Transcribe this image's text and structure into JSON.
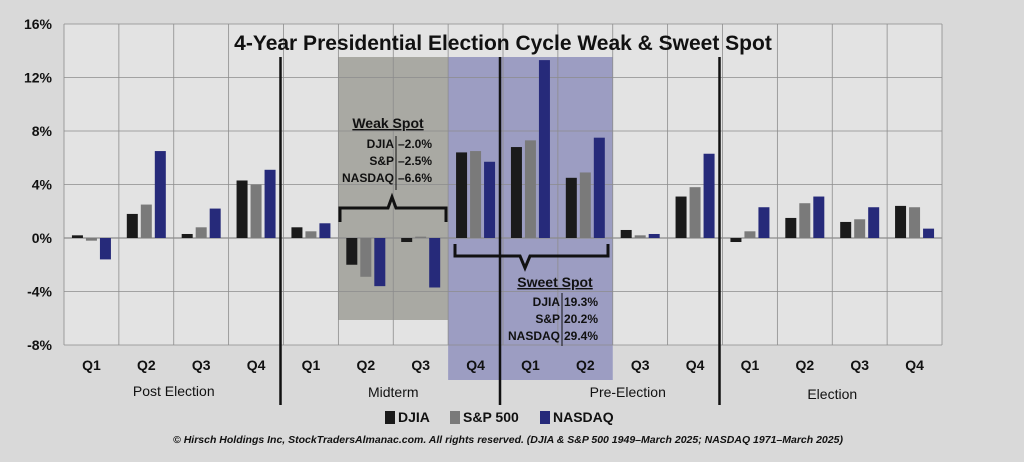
{
  "chart_data": {
    "type": "bar",
    "title": "4-Year Presidential Election Cycle Weak & Sweet Spot",
    "ylim": [
      -8,
      16
    ],
    "yticks": [
      "16%",
      "12%",
      "8%",
      "4%",
      "0%",
      "-4%",
      "-8%"
    ],
    "ytick_values": [
      16,
      12,
      8,
      4,
      0,
      -4,
      -8
    ],
    "grid": true,
    "legend_position": "bottom-center",
    "categories": [
      "Q1",
      "Q2",
      "Q3",
      "Q4",
      "Q1",
      "Q2",
      "Q3",
      "Q4",
      "Q1",
      "Q2",
      "Q3",
      "Q4",
      "Q1",
      "Q2",
      "Q3",
      "Q4"
    ],
    "groups": [
      "Post Election",
      "Midterm",
      "Pre-Election",
      "Election"
    ],
    "series": [
      {
        "name": "DJIA",
        "color": "#1a1a1a",
        "values": [
          0.2,
          1.8,
          0.3,
          4.3,
          0.8,
          -2.0,
          -0.3,
          6.4,
          6.8,
          4.5,
          0.6,
          3.1,
          -0.3,
          1.5,
          1.2,
          2.4
        ]
      },
      {
        "name": "S&P 500",
        "color": "#7a7a7a",
        "values": [
          -0.2,
          2.5,
          0.8,
          4.0,
          0.5,
          -2.9,
          0.1,
          6.5,
          7.3,
          4.9,
          0.2,
          3.8,
          0.5,
          2.6,
          1.4,
          2.3
        ]
      },
      {
        "name": "NASDAQ",
        "color": "#262a7a",
        "values": [
          -1.6,
          6.5,
          2.2,
          5.1,
          1.1,
          -3.6,
          -3.7,
          5.7,
          13.3,
          7.5,
          0.3,
          6.3,
          2.3,
          3.1,
          2.3,
          0.7
        ]
      }
    ],
    "annotations": {
      "weak_spot": {
        "title": "Weak Spot",
        "rows": [
          {
            "label": "DJIA",
            "value": "–2.0%"
          },
          {
            "label": "S&P",
            "value": "–2.5%"
          },
          {
            "label": "NASDAQ",
            "value": "–6.6%"
          }
        ]
      },
      "sweet_spot": {
        "title": "Sweet Spot",
        "rows": [
          {
            "label": "DJIA",
            "value": "19.3%"
          },
          {
            "label": "S&P",
            "value": "20.2%"
          },
          {
            "label": "NASDAQ",
            "value": "29.4%"
          }
        ]
      }
    },
    "colors": {
      "weak_shade": "#a9a9a3",
      "sweet_shade": "#9c9dc2",
      "plot_bg": "#e3e3e3",
      "grid": "#8c8c8c"
    },
    "footer": "© Hirsch Holdings Inc, StockTradersAlmanac.com.  All rights reserved.  (DJIA & S&P 500 1949–March 2025; NASDAQ 1971–March 2025)"
  }
}
